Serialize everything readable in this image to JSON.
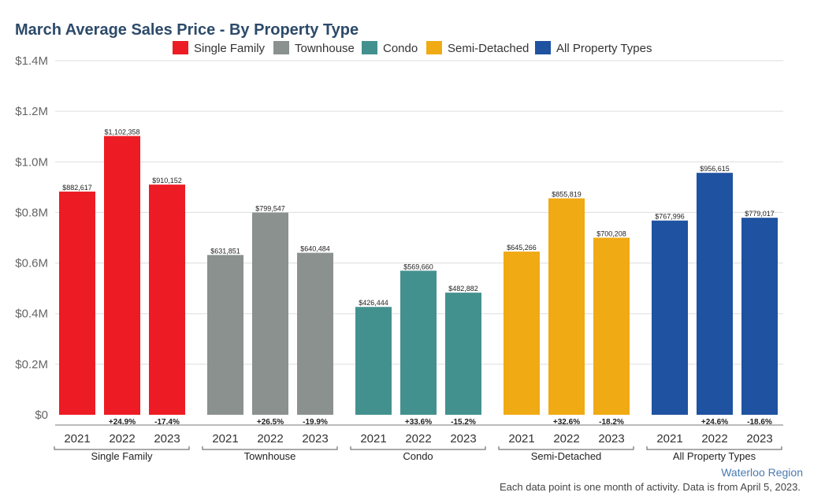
{
  "chart_data": {
    "type": "bar",
    "title": "March Average Sales Price - By Property Type",
    "groups": [
      "Single Family",
      "Townhouse",
      "Condo",
      "Semi-Detached",
      "All Property Types"
    ],
    "years": [
      "2021",
      "2022",
      "2023"
    ],
    "series": [
      {
        "name": "Single Family",
        "color": "#ed1c24",
        "values": [
          882617,
          1102358,
          910152
        ],
        "value_labels": [
          "$882,617",
          "$1,102,358",
          "$910,152"
        ],
        "changes": [
          "",
          "+24.9%",
          "-17.4%"
        ]
      },
      {
        "name": "Townhouse",
        "color": "#8a918f",
        "values": [
          631851,
          799547,
          640484
        ],
        "value_labels": [
          "$631,851",
          "$799,547",
          "$640,484"
        ],
        "changes": [
          "",
          "+26.5%",
          "-19.9%"
        ]
      },
      {
        "name": "Condo",
        "color": "#43918f",
        "values": [
          426444,
          569660,
          482882
        ],
        "value_labels": [
          "$426,444",
          "$569,660",
          "$482,882"
        ],
        "changes": [
          "",
          "+33.6%",
          "-15.2%"
        ]
      },
      {
        "name": "Semi-Detached",
        "color": "#f0aa14",
        "values": [
          645266,
          855819,
          700208
        ],
        "value_labels": [
          "$645,266",
          "$855,819",
          "$700,208"
        ],
        "changes": [
          "",
          "+32.6%",
          "-18.2%"
        ]
      },
      {
        "name": "All Property Types",
        "color": "#1f52a0",
        "values": [
          767996,
          956615,
          779017
        ],
        "value_labels": [
          "$767,996",
          "$956,615",
          "$779,017"
        ],
        "changes": [
          "",
          "+24.6%",
          "-18.6%"
        ]
      }
    ],
    "yticks": [
      0,
      200000,
      400000,
      600000,
      800000,
      1000000,
      1200000,
      1400000
    ],
    "ytick_labels": [
      "$0",
      "$0.2M",
      "$0.4M",
      "$0.6M",
      "$0.8M",
      "$1.0M",
      "$1.2M",
      "$1.4M"
    ],
    "ylim": [
      0,
      1400000
    ],
    "grid": true,
    "legend_position": "top-center"
  },
  "footer": {
    "region": "Waterloo Region",
    "note": "Each data point is one month of activity. Data is from April 5, 2023."
  }
}
